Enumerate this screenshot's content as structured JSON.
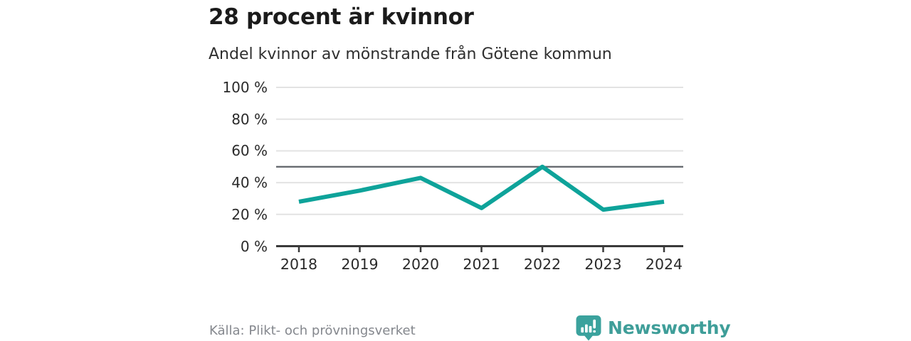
{
  "chart_data": {
    "type": "line",
    "title": "28 procent är kvinnor",
    "subtitle": "Andel kvinnor av mönstrande från Götene kommun",
    "categories": [
      "2018",
      "2019",
      "2020",
      "2021",
      "2022",
      "2023",
      "2024"
    ],
    "series": [
      {
        "name": "Andel kvinnor",
        "values": [
          28,
          35,
          43,
          24,
          50,
          23,
          28
        ]
      }
    ],
    "unit": "%",
    "ylim": [
      0,
      100
    ],
    "yticks": [
      0,
      20,
      40,
      60,
      80,
      100
    ],
    "ytick_labels": [
      "0 %",
      "20 %",
      "40 %",
      "60 %",
      "80 %",
      "100 %"
    ],
    "reference_line": 50,
    "grid": "horizontal",
    "legend": "none"
  },
  "footer": {
    "source": "Källa: Plikt- och prövningsverket",
    "brand": "Newsworthy"
  },
  "icons": {
    "brand_badge": "newsworthy-bar-chart-bubble-icon"
  },
  "colors": {
    "line": "#0ea39a",
    "grid": "#e3e3e3",
    "reference": "#5f6368",
    "axis": "#3a3a3a",
    "title_text": "#1b1b1b",
    "subtitle_text": "#2f2f2f",
    "tick_text": "#2a2a2a",
    "muted_text": "#84878d",
    "brand_teal": "#3f9e99",
    "badge_teal": "#3ba29d",
    "background": "#ffffff"
  }
}
